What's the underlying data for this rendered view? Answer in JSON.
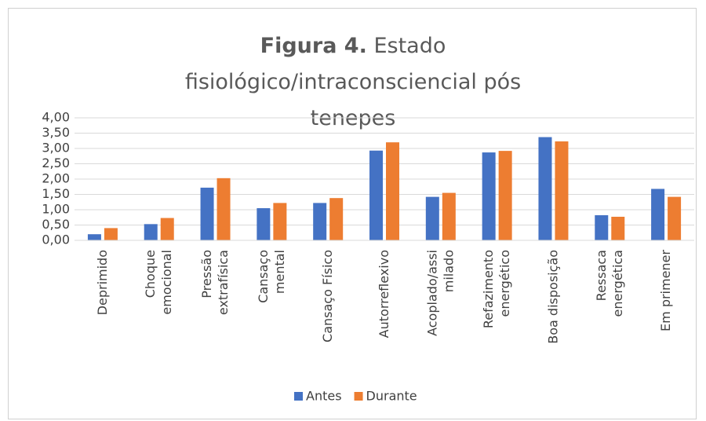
{
  "chart_data": {
    "type": "bar",
    "title": {
      "bold": "Figura 4.",
      "text": "Estado fisiológico/intraconsciencial  pós tenepes"
    },
    "categories": [
      "Deprimido",
      "Choque\nemocional",
      "Pressão\nextrafísica",
      "Cansaço\nmental",
      "Cansaço Físico",
      "Autorreflexivo",
      "Acoplado/assi\nmilado",
      "Refazimento\nenergético",
      "Boa disposição",
      "Ressaca\nenergética",
      "Em primener"
    ],
    "series": [
      {
        "name": "Antes",
        "color": "#4472c4",
        "values": [
          0.2,
          0.53,
          1.72,
          1.05,
          1.22,
          2.93,
          1.42,
          2.87,
          3.37,
          0.82,
          1.68
        ]
      },
      {
        "name": "Durante",
        "color": "#ed7d31",
        "values": [
          0.4,
          0.73,
          2.03,
          1.22,
          1.38,
          3.2,
          1.55,
          2.92,
          3.23,
          0.77,
          1.42
        ]
      }
    ],
    "ylim": [
      0,
      4
    ],
    "yticks": [
      {
        "value": 0,
        "label": "0,00"
      },
      {
        "value": 0.5,
        "label": "0,50"
      },
      {
        "value": 1,
        "label": "1,00"
      },
      {
        "value": 1.5,
        "label": "1,50"
      },
      {
        "value": 2,
        "label": "2,00"
      },
      {
        "value": 2.5,
        "label": "2,50"
      },
      {
        "value": 3,
        "label": "3,00"
      },
      {
        "value": 3.5,
        "label": "3,50"
      },
      {
        "value": 4,
        "label": "4,00"
      }
    ],
    "grid": true,
    "legend": "bottom"
  }
}
